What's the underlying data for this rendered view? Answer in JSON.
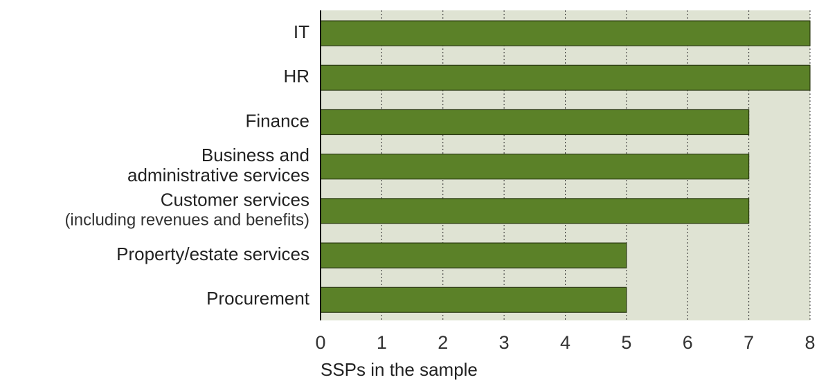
{
  "chart_data": {
    "type": "barh",
    "categories": [
      [
        "IT"
      ],
      [
        "HR"
      ],
      [
        "Finance"
      ],
      [
        "Business and",
        "administrative services"
      ],
      [
        "Customer services",
        "(including revenues and benefits)"
      ],
      [
        "Property/estate services"
      ],
      [
        "Procurement"
      ]
    ],
    "values": [
      8,
      8,
      7,
      7,
      7,
      5,
      5
    ],
    "color": "#5b8128",
    "xlabel": "SSPs in the sample",
    "xlim": [
      0,
      8
    ],
    "xticks": [
      0,
      1,
      2,
      3,
      4,
      5,
      6,
      7,
      8
    ],
    "grid": true
  }
}
